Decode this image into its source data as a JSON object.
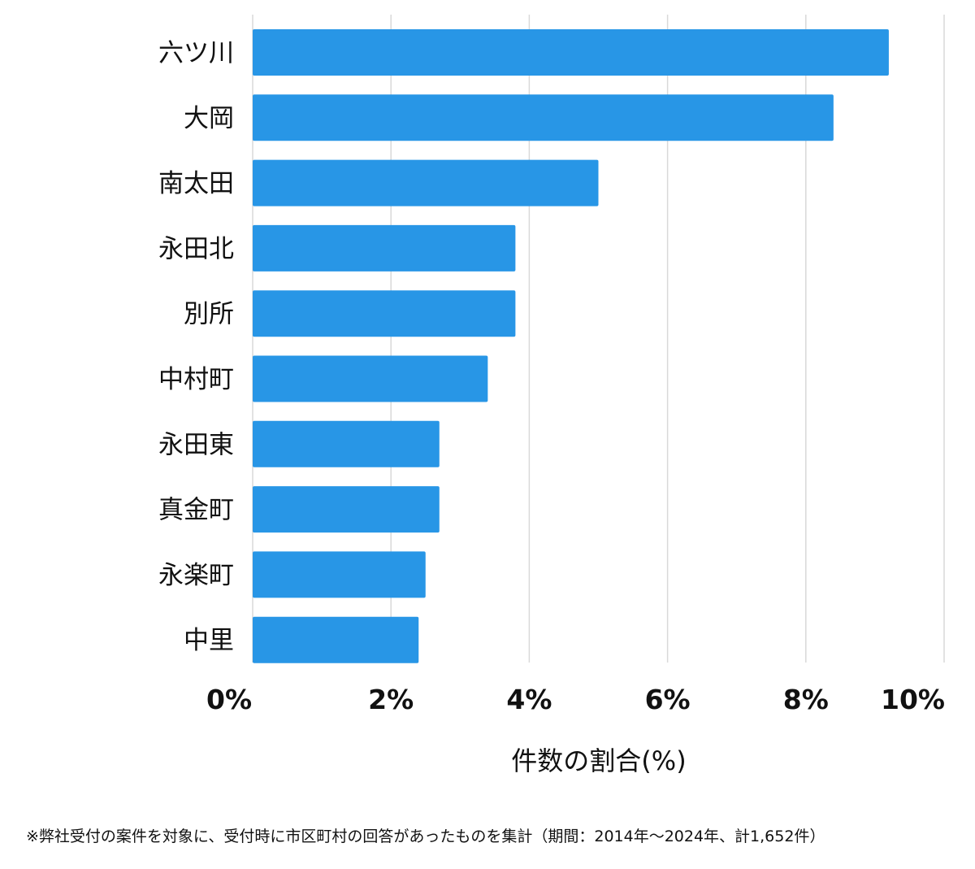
{
  "chart_data": {
    "type": "bar",
    "orientation": "horizontal",
    "categories": [
      "六ツ川",
      "大岡",
      "南太田",
      "永田北",
      "別所",
      "中村町",
      "永田東",
      "真金町",
      "永楽町",
      "中里"
    ],
    "values": [
      9.2,
      8.4,
      5.0,
      3.8,
      3.8,
      3.4,
      2.7,
      2.7,
      2.5,
      2.4
    ],
    "xlabel": "件数の割合(%)",
    "ylabel": "",
    "xlim": [
      0,
      10
    ],
    "ticks": [
      0,
      2,
      4,
      6,
      8,
      10
    ],
    "tick_labels": [
      "0%",
      "2%",
      "4%",
      "6%",
      "8%",
      "10%"
    ],
    "grid": true,
    "bar_color": "#2896E6",
    "grid_color": "#D9D9D9"
  },
  "footnote": "※弊社受付の案件を対象に、受付時に市区町村の回答があったものを集計（期間：2014年〜2024年、計1,652件）"
}
